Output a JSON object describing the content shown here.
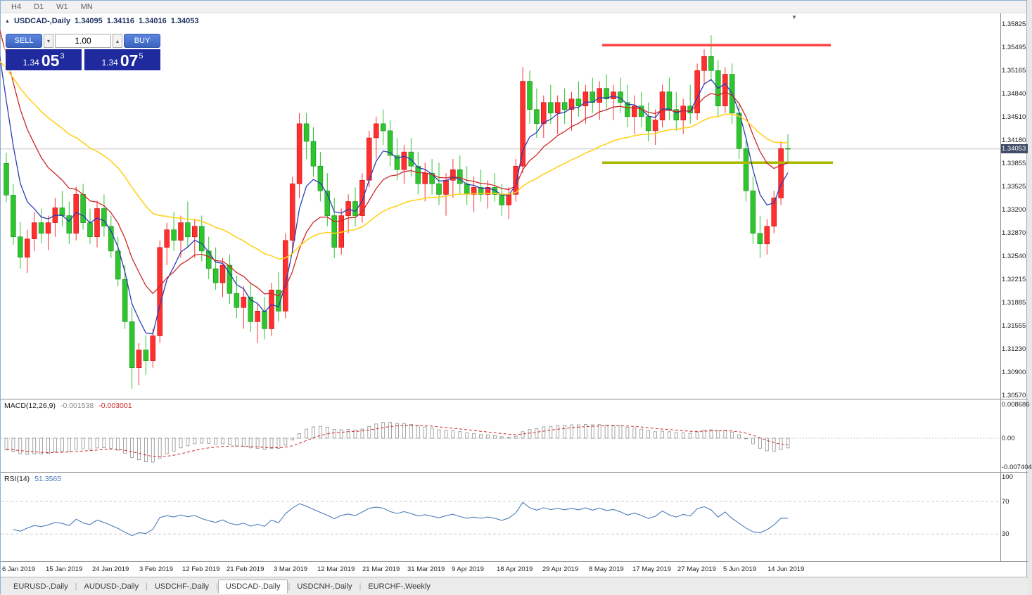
{
  "toolbar": {
    "timeframes": [
      "H4",
      "D1",
      "W1",
      "MN"
    ]
  },
  "icons": {
    "collapse": "▲",
    "shift_marker": "▼",
    "vol_down": "▾",
    "vol_up": "▴"
  },
  "chart_header": {
    "symbol": "USDCAD-,Daily",
    "ohlc": [
      "1.34095",
      "1.34116",
      "1.34016",
      "1.34053"
    ]
  },
  "trade_panel": {
    "sell_label": "SELL",
    "buy_label": "BUY",
    "volume_value": "1.00",
    "sell_price": {
      "base": "1.34",
      "pips": "05",
      "pt": "3"
    },
    "buy_price": {
      "base": "1.34",
      "pips": "07",
      "pt": "5"
    }
  },
  "price_axis": {
    "ticks": [
      "1.35825",
      "1.35495",
      "1.35165",
      "1.34840",
      "1.34510",
      "1.34180",
      "1.33855",
      "1.33525",
      "1.33200",
      "1.32870",
      "1.32540",
      "1.32215",
      "1.31885",
      "1.31555",
      "1.31230",
      "1.30900",
      "1.30570"
    ],
    "current_label": "1.34053"
  },
  "indicators": {
    "macd": {
      "name": "MACD(12,26,9)",
      "value_main": "-0.001538",
      "value_signal": "-0.003001",
      "axis_ticks": [
        {
          "text": "0.008686",
          "value": 0.008686
        },
        {
          "text": "0.00",
          "value": 0
        },
        {
          "text": "-0.007404",
          "value": -0.007404
        }
      ],
      "range": {
        "max": 0.008686,
        "min": -0.007404
      }
    },
    "rsi": {
      "name": "RSI(14)",
      "value": "51.3565",
      "axis_ticks": [
        {
          "text": "100",
          "value": 100
        },
        {
          "text": "70",
          "value": 70
        },
        {
          "text": "30",
          "value": 30
        }
      ],
      "levels": [
        70,
        30
      ],
      "range": {
        "max": 100,
        "min": 0
      }
    }
  },
  "date_axis": [
    {
      "text": "6 Jan 2019",
      "x": 2
    },
    {
      "text": "15 Jan 2019",
      "x": 64
    },
    {
      "text": "24 Jan 2019",
      "x": 130
    },
    {
      "text": "3 Feb 2019",
      "x": 197
    },
    {
      "text": "12 Feb 2019",
      "x": 258
    },
    {
      "text": "21 Feb 2019",
      "x": 321
    },
    {
      "text": "3 Mar 2019",
      "x": 388
    },
    {
      "text": "12 Mar 2019",
      "x": 450
    },
    {
      "text": "21 Mar 2019",
      "x": 514
    },
    {
      "text": "31 Mar 2019",
      "x": 578
    },
    {
      "text": "9 Apr 2019",
      "x": 641
    },
    {
      "text": "18 Apr 2019",
      "x": 705
    },
    {
      "text": "29 Apr 2019",
      "x": 770
    },
    {
      "text": "8 May 2019",
      "x": 836
    },
    {
      "text": "17 May 2019",
      "x": 898
    },
    {
      "text": "27 May 2019",
      "x": 962
    },
    {
      "text": "5 Jun 2019",
      "x": 1027
    },
    {
      "text": "14 Jun 2019",
      "x": 1090
    }
  ],
  "tabs": [
    {
      "label": "EURUSD-,Daily",
      "active": false
    },
    {
      "label": "AUDUSD-,Daily",
      "active": false
    },
    {
      "label": "USDCHF-,Daily",
      "active": false
    },
    {
      "label": "USDCAD-,Daily",
      "active": true
    },
    {
      "label": "USDCNH-,Daily",
      "active": false
    },
    {
      "label": "EURCHF-,Weekly",
      "active": false
    }
  ],
  "colors": {
    "up": "#ff2f2f",
    "up_stroke": "#b80000",
    "down": "#2fc52f",
    "down_stroke": "#0f7d0f",
    "ma_fast": "#2b3cb5",
    "ma_mid": "#cc2727",
    "ma_slow": "#ffd21f",
    "res_line": "#ff4242",
    "sup_line": "#a9ba00",
    "price_line": "#c4c4c4",
    "price_tag_bg": "#404c68",
    "rsi_line": "#4a7cba",
    "macd_signal": "#cc2727",
    "macd_bar": "#8f8f8f",
    "trade_btn": "#3a63c0",
    "price_box": "#1e2a9e"
  },
  "chart_data": {
    "type": "candlestick",
    "symbol": "USDCAD-",
    "timeframe": "Daily",
    "ohlc_current": {
      "open": 1.34095,
      "high": 1.34116,
      "low": 1.34016,
      "close": 1.34053
    },
    "price_top": 1.3597,
    "price_bottom": 1.3052,
    "current_price": 1.34053,
    "y_ticks": [
      1.35825,
      1.35495,
      1.35165,
      1.3484,
      1.3451,
      1.3418,
      1.33855,
      1.33525,
      1.332,
      1.3287,
      1.3254,
      1.32215,
      1.31885,
      1.31555,
      1.3123,
      1.309,
      1.3057
    ],
    "candles": [
      [
        1.3385,
        1.34,
        1.333,
        1.334
      ],
      [
        1.334,
        1.3356,
        1.327,
        1.3281
      ],
      [
        1.3281,
        1.3302,
        1.3236,
        1.3252
      ],
      [
        1.3252,
        1.3291,
        1.323,
        1.3278
      ],
      [
        1.3278,
        1.3316,
        1.3261,
        1.3301
      ],
      [
        1.3301,
        1.3321,
        1.3272,
        1.3286
      ],
      [
        1.3286,
        1.3311,
        1.3262,
        1.3301
      ],
      [
        1.3301,
        1.3336,
        1.3281,
        1.3322
      ],
      [
        1.3322,
        1.3346,
        1.3296,
        1.3311
      ],
      [
        1.3311,
        1.3331,
        1.3271,
        1.3286
      ],
      [
        1.3286,
        1.3352,
        1.3276,
        1.3341
      ],
      [
        1.3341,
        1.3356,
        1.3291,
        1.3301
      ],
      [
        1.3301,
        1.3321,
        1.3271,
        1.3281
      ],
      [
        1.3281,
        1.3332,
        1.3266,
        1.3321
      ],
      [
        1.3321,
        1.3341,
        1.3281,
        1.3296
      ],
      [
        1.3296,
        1.3311,
        1.3251,
        1.3261
      ],
      [
        1.3261,
        1.3281,
        1.3211,
        1.3221
      ],
      [
        1.3221,
        1.3241,
        1.3151,
        1.3161
      ],
      [
        1.3161,
        1.3181,
        1.3066,
        1.3096
      ],
      [
        1.3096,
        1.3131,
        1.3071,
        1.3121
      ],
      [
        1.3121,
        1.3141,
        1.3086,
        1.3106
      ],
      [
        1.3106,
        1.3151,
        1.3096,
        1.3141
      ],
      [
        1.3141,
        1.3276,
        1.3131,
        1.3266
      ],
      [
        1.3266,
        1.3301,
        1.3241,
        1.3291
      ],
      [
        1.3291,
        1.3316,
        1.3261,
        1.3276
      ],
      [
        1.3276,
        1.3311,
        1.3251,
        1.3301
      ],
      [
        1.3301,
        1.3331,
        1.3266,
        1.3281
      ],
      [
        1.3281,
        1.3306,
        1.3251,
        1.3296
      ],
      [
        1.3296,
        1.3311,
        1.3246,
        1.3261
      ],
      [
        1.3261,
        1.3281,
        1.3221,
        1.3236
      ],
      [
        1.3236,
        1.3266,
        1.3206,
        1.3216
      ],
      [
        1.3216,
        1.3251,
        1.3196,
        1.3241
      ],
      [
        1.3241,
        1.3256,
        1.3186,
        1.3201
      ],
      [
        1.3201,
        1.3226,
        1.3166,
        1.3181
      ],
      [
        1.3181,
        1.3211,
        1.3151,
        1.3196
      ],
      [
        1.3196,
        1.3216,
        1.3146,
        1.3161
      ],
      [
        1.3161,
        1.3186,
        1.3131,
        1.3176
      ],
      [
        1.3176,
        1.3196,
        1.3136,
        1.3151
      ],
      [
        1.3151,
        1.3216,
        1.3141,
        1.3206
      ],
      [
        1.3206,
        1.3231,
        1.3161,
        1.3176
      ],
      [
        1.3176,
        1.3286,
        1.3166,
        1.3276
      ],
      [
        1.3276,
        1.3366,
        1.3256,
        1.3356
      ],
      [
        1.3356,
        1.3456,
        1.3336,
        1.3441
      ],
      [
        1.3441,
        1.3456,
        1.3391,
        1.3416
      ],
      [
        1.3416,
        1.3436,
        1.3366,
        1.3381
      ],
      [
        1.3381,
        1.3401,
        1.3331,
        1.3346
      ],
      [
        1.3346,
        1.3371,
        1.3296,
        1.3311
      ],
      [
        1.3311,
        1.3336,
        1.3251,
        1.3266
      ],
      [
        1.3266,
        1.3321,
        1.3256,
        1.3311
      ],
      [
        1.3311,
        1.3341,
        1.3286,
        1.3331
      ],
      [
        1.3331,
        1.3351,
        1.3296,
        1.3311
      ],
      [
        1.3311,
        1.3371,
        1.3301,
        1.3361
      ],
      [
        1.3361,
        1.3431,
        1.3351,
        1.3421
      ],
      [
        1.3421,
        1.3451,
        1.3391,
        1.3441
      ],
      [
        1.3441,
        1.3461,
        1.3411,
        1.3431
      ],
      [
        1.3431,
        1.3446,
        1.3381,
        1.3396
      ],
      [
        1.3396,
        1.3421,
        1.3361,
        1.3376
      ],
      [
        1.3376,
        1.3411,
        1.3356,
        1.3401
      ],
      [
        1.3401,
        1.3421,
        1.3366,
        1.3381
      ],
      [
        1.3381,
        1.3401,
        1.3341,
        1.3356
      ],
      [
        1.3356,
        1.3386,
        1.3331,
        1.3371
      ],
      [
        1.3371,
        1.3391,
        1.3341,
        1.3356
      ],
      [
        1.3356,
        1.3386,
        1.3326,
        1.3341
      ],
      [
        1.3341,
        1.3371,
        1.3311,
        1.3361
      ],
      [
        1.3361,
        1.3391,
        1.3336,
        1.3376
      ],
      [
        1.3376,
        1.3396,
        1.3341,
        1.3356
      ],
      [
        1.3356,
        1.3381,
        1.3326,
        1.3341
      ],
      [
        1.3341,
        1.3366,
        1.3316,
        1.3351
      ],
      [
        1.3351,
        1.3376,
        1.3331,
        1.3341
      ],
      [
        1.3341,
        1.3361,
        1.3321,
        1.3351
      ],
      [
        1.3351,
        1.3371,
        1.3331,
        1.3341
      ],
      [
        1.3341,
        1.3356,
        1.3311,
        1.3326
      ],
      [
        1.3326,
        1.3351,
        1.3306,
        1.3341
      ],
      [
        1.3341,
        1.3391,
        1.3331,
        1.3381
      ],
      [
        1.3381,
        1.3521,
        1.3371,
        1.3501
      ],
      [
        1.3501,
        1.3516,
        1.3441,
        1.3461
      ],
      [
        1.3461,
        1.3491,
        1.3421,
        1.3441
      ],
      [
        1.3441,
        1.3481,
        1.3421,
        1.3471
      ],
      [
        1.3471,
        1.3496,
        1.3441,
        1.3456
      ],
      [
        1.3456,
        1.3481,
        1.3426,
        1.3471
      ],
      [
        1.3471,
        1.3491,
        1.3441,
        1.3461
      ],
      [
        1.3461,
        1.3486,
        1.3431,
        1.3476
      ],
      [
        1.3476,
        1.3501,
        1.3451,
        1.3466
      ],
      [
        1.3466,
        1.3496,
        1.3441,
        1.3486
      ],
      [
        1.3486,
        1.3506,
        1.3456,
        1.3471
      ],
      [
        1.3471,
        1.3501,
        1.3446,
        1.3491
      ],
      [
        1.3491,
        1.3511,
        1.3461,
        1.3476
      ],
      [
        1.3476,
        1.3496,
        1.3446,
        1.3486
      ],
      [
        1.3486,
        1.3506,
        1.3456,
        1.3471
      ],
      [
        1.3471,
        1.3496,
        1.3436,
        1.3451
      ],
      [
        1.3451,
        1.3481,
        1.3426,
        1.3466
      ],
      [
        1.3466,
        1.3486,
        1.3436,
        1.3451
      ],
      [
        1.3451,
        1.3471,
        1.3416,
        1.3431
      ],
      [
        1.3431,
        1.3461,
        1.3411,
        1.3446
      ],
      [
        1.3446,
        1.3496,
        1.3436,
        1.3486
      ],
      [
        1.3486,
        1.3506,
        1.3446,
        1.3461
      ],
      [
        1.3461,
        1.3486,
        1.3431,
        1.3446
      ],
      [
        1.3446,
        1.3476,
        1.3426,
        1.3466
      ],
      [
        1.3466,
        1.3496,
        1.3441,
        1.3456
      ],
      [
        1.3456,
        1.3526,
        1.3446,
        1.3516
      ],
      [
        1.3516,
        1.3546,
        1.3496,
        1.3536
      ],
      [
        1.3536,
        1.3566,
        1.3501,
        1.3516
      ],
      [
        1.3516,
        1.3531,
        1.3451,
        1.3466
      ],
      [
        1.3466,
        1.3521,
        1.3456,
        1.3511
      ],
      [
        1.3511,
        1.3526,
        1.3441,
        1.3456
      ],
      [
        1.3456,
        1.3471,
        1.3391,
        1.3406
      ],
      [
        1.3406,
        1.3421,
        1.3331,
        1.3346
      ],
      [
        1.3346,
        1.3366,
        1.3271,
        1.3286
      ],
      [
        1.3286,
        1.3311,
        1.3251,
        1.3271
      ],
      [
        1.3271,
        1.3306,
        1.3256,
        1.3296
      ],
      [
        1.3296,
        1.3346,
        1.3286,
        1.3336
      ],
      [
        1.3336,
        1.3416,
        1.3326,
        1.3406
      ],
      [
        1.3406,
        1.3426,
        1.3386,
        1.34053
      ]
    ],
    "moving_averages": [
      {
        "name": "fast-ma-blue",
        "period": 5,
        "seed": 1.354
      },
      {
        "name": "mid-ma-red",
        "period": 12,
        "seed": 1.3575
      },
      {
        "name": "slow-ma-yellow",
        "period": 34,
        "seed": 1.353
      }
    ],
    "hlines": [
      {
        "name": "resistance",
        "price": 1.3552,
        "from_x": 855,
        "to_x": 1180
      },
      {
        "name": "support",
        "price": 1.3386,
        "from_x": 855,
        "to_x": 1183
      }
    ],
    "macd_seeds": {
      "ema12": 1.337,
      "ema26": 1.34,
      "signal": -0.0028
    },
    "rsi_seed": {
      "gain": 0.0013,
      "loss": 0.0019
    }
  }
}
